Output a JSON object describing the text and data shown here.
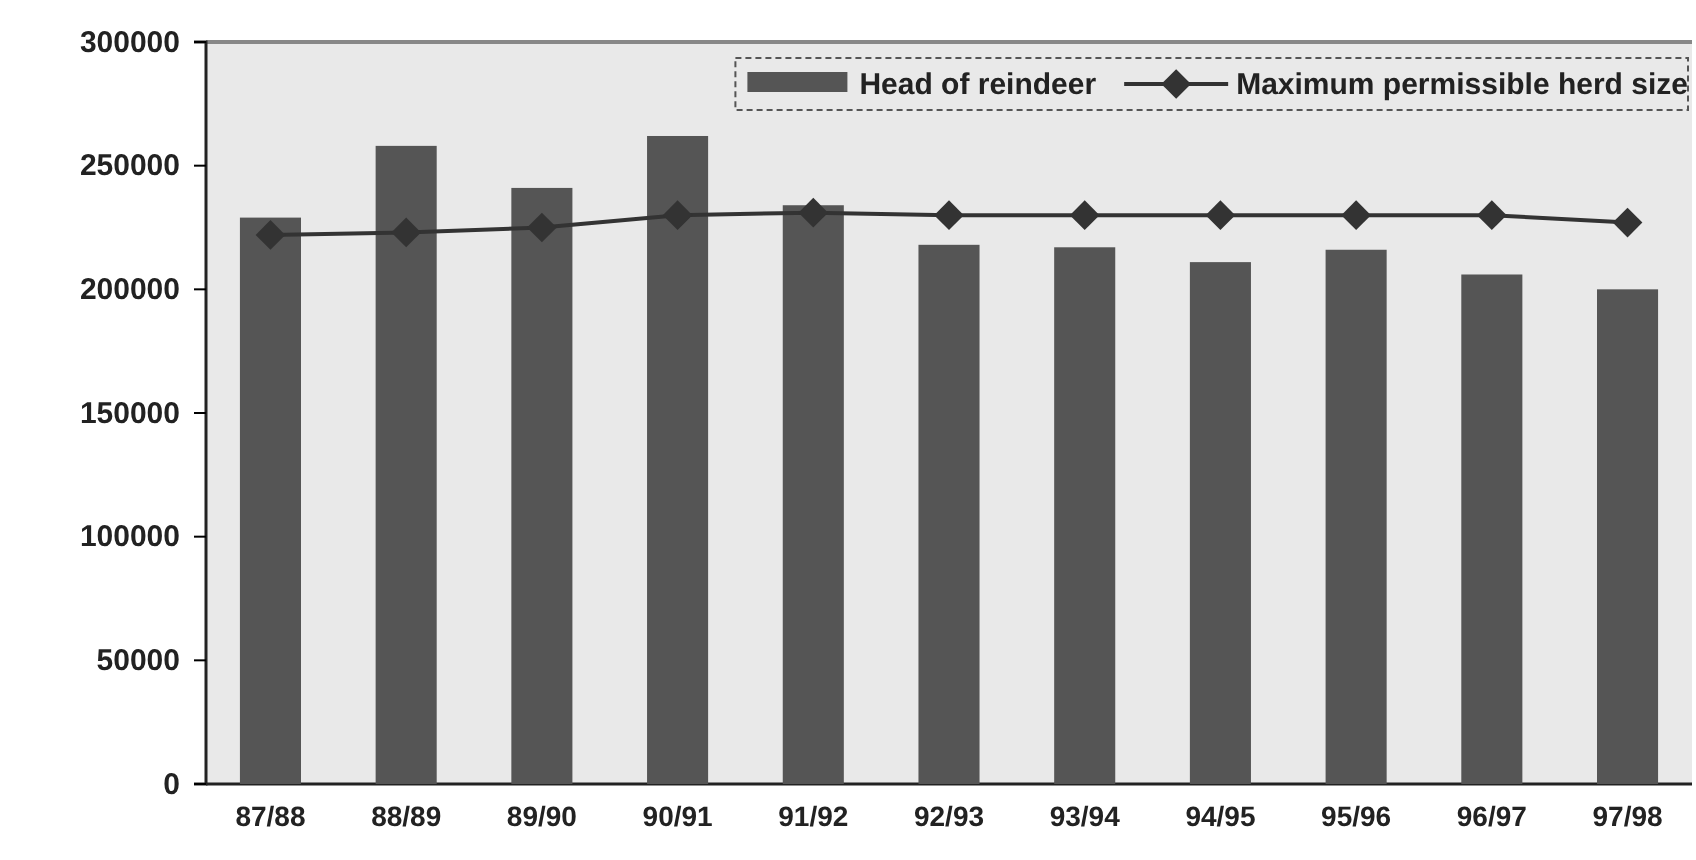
{
  "chart_data": {
    "type": "bar",
    "categories": [
      "87/88",
      "88/89",
      "89/90",
      "90/91",
      "91/92",
      "92/93",
      "93/94",
      "94/95",
      "95/96",
      "96/97",
      "97/98"
    ],
    "series": [
      {
        "name": "Head of reindeer",
        "color": "#555555",
        "values": [
          229000,
          258000,
          241000,
          262000,
          234000,
          218000,
          217000,
          211000,
          216000,
          206000,
          200000
        ]
      },
      {
        "name": "Maximum permissible herd size",
        "type": "line",
        "color": "#333333",
        "marker": "diamond",
        "values": [
          222000,
          223000,
          225000,
          230000,
          231000,
          230000,
          230000,
          230000,
          230000,
          230000,
          227000
        ]
      }
    ],
    "ylim": [
      0,
      300000
    ],
    "yticks": [
      0,
      50000,
      100000,
      150000,
      200000,
      250000,
      300000
    ],
    "grid": false,
    "legend": "top right"
  }
}
